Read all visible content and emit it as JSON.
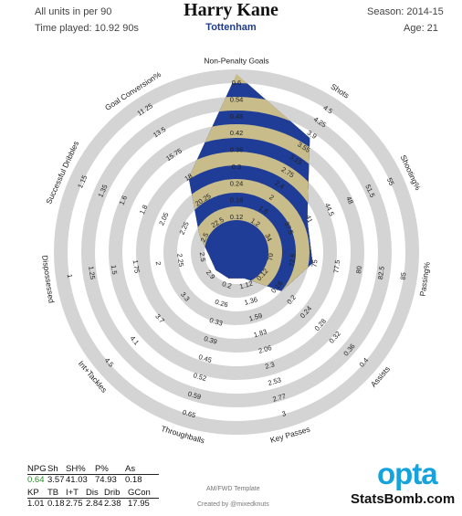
{
  "header": {
    "units_note": "All units in per 90",
    "time_played": "Time played: 10.92 90s",
    "player": "Harry Kane",
    "team": "Tottenham",
    "season": "Season: 2014-15",
    "age": "Age: 21"
  },
  "chart_data": {
    "type": "radar",
    "axes": [
      {
        "label": "Non-Penalty Goals",
        "value": 0.64,
        "scale": [
          "0.12",
          "0.18",
          "0.24",
          "0.3",
          "0.36",
          "0.42",
          "0.48",
          "0.54",
          "0.6"
        ]
      },
      {
        "label": "Shots",
        "value": 3.57,
        "scale": [
          "1.2",
          "1.6",
          "2",
          "2.4",
          "2.75",
          "3.15",
          "3.55",
          "3.9",
          "4.25",
          "4.5"
        ]
      },
      {
        "label": "Shooting%",
        "value": 41.03,
        "scale": [
          "34",
          "37.5",
          "41",
          "44.5",
          "48",
          "51.5",
          "55"
        ]
      },
      {
        "label": "Passing%",
        "value": 74.93,
        "scale": [
          "70",
          "72.5",
          "75",
          "77.5",
          "80",
          "82.5",
          "85"
        ]
      },
      {
        "label": "Assists",
        "value": 0.18,
        "scale": [
          "0.12",
          "0.16",
          "0.2",
          "0.24",
          "0.28",
          "0.32",
          "0.36",
          "0.4"
        ]
      },
      {
        "label": "Key Passes",
        "value": 1.01,
        "scale": [
          "1.12",
          "1.36",
          "1.59",
          "1.83",
          "2.06",
          "2.3",
          "2.53",
          "2.77",
          "3"
        ]
      },
      {
        "label": "Throughballs",
        "value": 0.18,
        "scale": [
          "0.2",
          "0.26",
          "0.33",
          "0.39",
          "0.45",
          "0.52",
          "0.59",
          "0.65"
        ]
      },
      {
        "label": "Int+Tackles",
        "value": 2.75,
        "scale": [
          "2.9",
          "3.3",
          "3.7",
          "4.1",
          "4.5"
        ]
      },
      {
        "label": "Dispossessed",
        "value": 2.84,
        "scale": [
          "2.5",
          "2.25",
          "2",
          "1.75",
          "1.5",
          "1.25",
          "1"
        ]
      },
      {
        "label": "Successful Dribbles",
        "value": 2.38,
        "scale": [
          "2.5",
          "2.25",
          "2.05",
          "1.8",
          "1.6",
          "1.35",
          "1.15"
        ]
      },
      {
        "label": "Goal Conversion%",
        "value": 17.95,
        "scale": [
          "22.5",
          "20.25",
          "18",
          "15.75",
          "13.5",
          "11.25"
        ]
      }
    ],
    "series": [
      {
        "name": "Harry Kane",
        "values": [
          0.64,
          3.57,
          41.03,
          74.93,
          0.18,
          1.01,
          0.18,
          2.75,
          2.84,
          2.38,
          17.95
        ]
      }
    ],
    "colors": {
      "fill_a": "#1f3c96",
      "fill_b": "#c8bc8b",
      "ring": "#d4d4d4",
      "accent": "#2e8b2e"
    }
  },
  "stats_table": {
    "row1_headers": [
      "NPG",
      "Sh",
      "SH%",
      "P%",
      "As"
    ],
    "row1_values": [
      "0.64",
      "3.57",
      "41.03",
      "74.93",
      "0.18"
    ],
    "row2_headers": [
      "KP",
      "TB",
      "I+T",
      "Dis",
      "Drib",
      "GCon"
    ],
    "row2_values": [
      "1.01",
      "0.18",
      "2.75",
      "2.84",
      "2.38",
      "17.95"
    ]
  },
  "footer": {
    "template": "AM/FWD Template",
    "credit": "Created by @mixedknuts",
    "logo": "opta",
    "site": "StatsBomb.com"
  }
}
